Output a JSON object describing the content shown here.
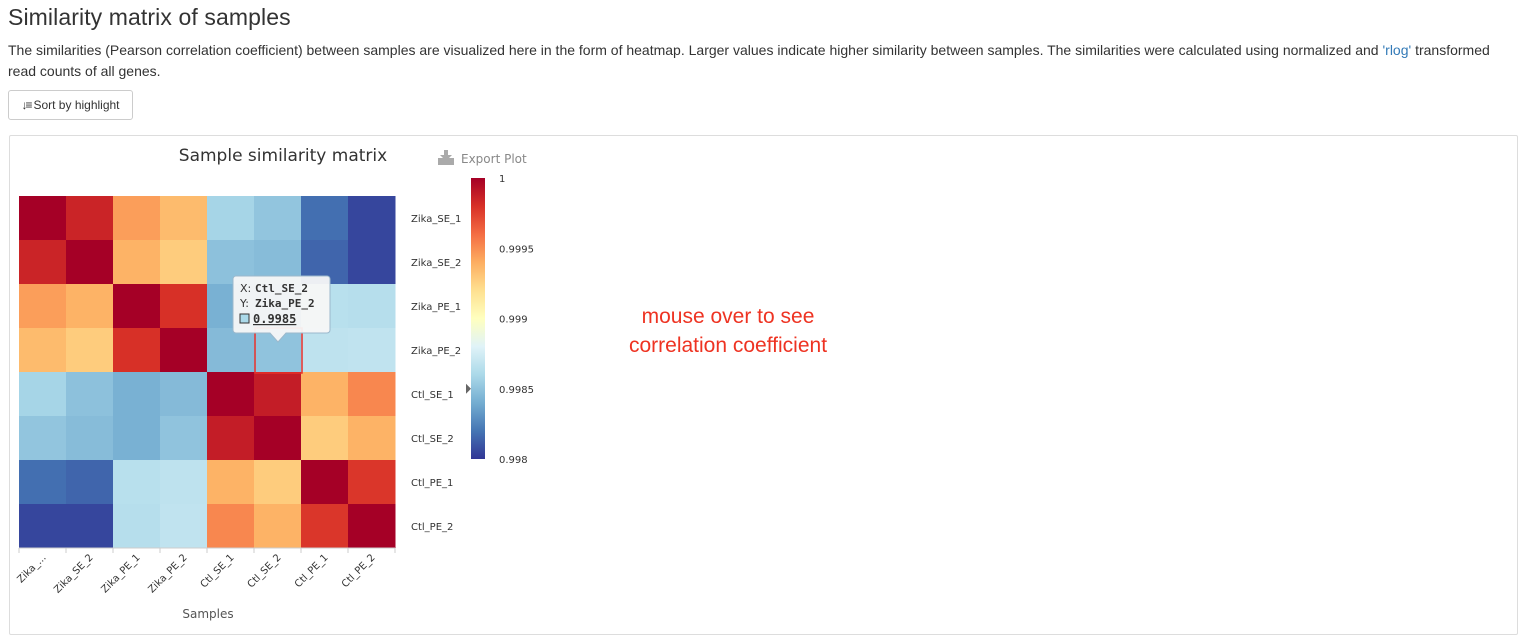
{
  "header": {
    "title": "Similarity matrix of samples",
    "description_before": "The similarities (Pearson correlation coefficient) between samples are visualized here in the form of heatmap. Larger values indicate higher similarity between samples. The similarities were calculated using normalized and ",
    "description_link": "'rlog'",
    "description_after": " transformed read counts of all genes."
  },
  "toolbar": {
    "sort_label": "Sort by highlight",
    "sort_icon": "sort-amount-icon"
  },
  "plot": {
    "export_label": "Export Plot",
    "export_icon": "download-icon"
  },
  "annotation": {
    "line1": "mouse over to see",
    "line2": "correlation coefficient"
  },
  "tooltip": {
    "x_prefix": "X:",
    "x_value": "Ctl_SE_2",
    "y_prefix": "Y:",
    "y_value": "Zika_PE_2",
    "value": "0.9985"
  },
  "colors": {
    "high": "#a50026",
    "mid": "#ffffbf",
    "low": "#313695",
    "highlight_border": "#e8302a",
    "annotation": "#ee3322",
    "link": "#337ab7"
  },
  "chart_data": {
    "type": "heatmap",
    "title": "Sample similarity matrix",
    "xlabel": "Samples",
    "ylabel": "",
    "x_categories": [
      "Zika_...",
      "Zika_SE_2",
      "Zika_PE_1",
      "Zika_PE_2",
      "Ctl_SE_1",
      "Ctl_SE_2",
      "Ctl_PE_1",
      "Ctl_PE_2"
    ],
    "y_categories": [
      "Zika_SE_1",
      "Zika_SE_2",
      "Zika_PE_1",
      "Zika_PE_2",
      "Ctl_SE_1",
      "Ctl_SE_2",
      "Ctl_PE_1",
      "Ctl_PE_2"
    ],
    "values": [
      [
        1.0,
        0.99985,
        0.99945,
        0.99935,
        0.99858,
        0.99851,
        0.99818,
        0.99805
      ],
      [
        0.99985,
        1.0,
        0.99938,
        0.99928,
        0.99849,
        0.99847,
        0.99815,
        0.99805
      ],
      [
        0.99945,
        0.99938,
        1.0,
        0.9998,
        0.99842,
        0.99842,
        0.99865,
        0.99864
      ],
      [
        0.99935,
        0.99928,
        0.9998,
        1.0,
        0.99846,
        0.9985,
        0.99867,
        0.99868
      ],
      [
        0.99858,
        0.99849,
        0.99842,
        0.99846,
        1.0,
        0.99988,
        0.99938,
        0.99952
      ],
      [
        0.99851,
        0.99847,
        0.99842,
        0.9985,
        0.99988,
        1.0,
        0.99928,
        0.99938
      ],
      [
        0.99818,
        0.99815,
        0.99865,
        0.99867,
        0.99938,
        0.99928,
        1.0,
        0.99978
      ],
      [
        0.99805,
        0.99805,
        0.99864,
        0.99868,
        0.99952,
        0.99938,
        0.99978,
        1.0
      ]
    ],
    "color_scale": {
      "min": 0.998,
      "max": 1,
      "ticks": [
        "1",
        "0.9995",
        "0.999",
        "0.9985",
        "0.998"
      ]
    },
    "hovered_cell": {
      "x": "Ctl_SE_2",
      "y": "Zika_PE_2",
      "value": 0.9985
    },
    "legend_pointer_value": 0.9985
  }
}
